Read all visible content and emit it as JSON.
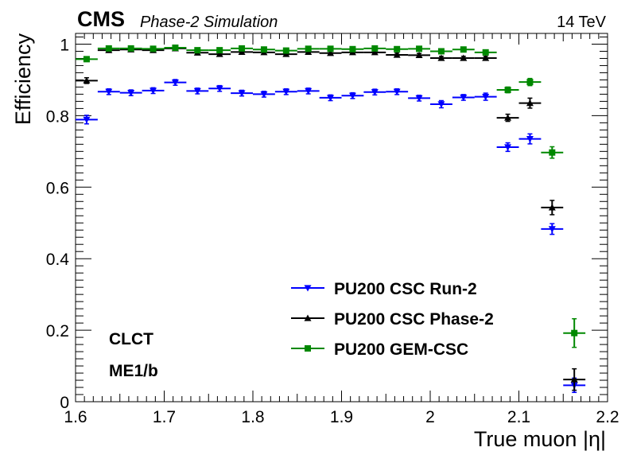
{
  "header": {
    "experiment": "CMS",
    "subtitle": "Phase-2 Simulation",
    "energy": "14 TeV"
  },
  "labels": {
    "region_line1": "CLCT",
    "region_line2": "ME1/b"
  },
  "chart_data": {
    "type": "scatter",
    "xlabel": "True muon |η|",
    "ylabel": "Efficiency",
    "xlim": [
      1.6,
      2.2
    ],
    "ylim": [
      0,
      1.03
    ],
    "x_ticks": [
      "1.6",
      "1.7",
      "1.8",
      "1.9",
      "2",
      "2.1",
      "2.2"
    ],
    "y_ticks": [
      "0",
      "0.2",
      "0.4",
      "0.6",
      "0.8",
      "1"
    ],
    "grid": false,
    "legend_position": "lower-center",
    "series": [
      {
        "name": "PU200 CSC Run-2",
        "color": "#0000ff",
        "marker": "triangle-down",
        "points": [
          {
            "x": 1.6125,
            "y": 0.789,
            "err": 0.012
          },
          {
            "x": 1.6375,
            "y": 0.867,
            "err": 0.008
          },
          {
            "x": 1.6625,
            "y": 0.864,
            "err": 0.008
          },
          {
            "x": 1.6875,
            "y": 0.87,
            "err": 0.008
          },
          {
            "x": 1.7125,
            "y": 0.893,
            "err": 0.008
          },
          {
            "x": 1.7375,
            "y": 0.869,
            "err": 0.008
          },
          {
            "x": 1.7625,
            "y": 0.876,
            "err": 0.008
          },
          {
            "x": 1.7875,
            "y": 0.863,
            "err": 0.008
          },
          {
            "x": 1.8125,
            "y": 0.86,
            "err": 0.008
          },
          {
            "x": 1.8375,
            "y": 0.867,
            "err": 0.008
          },
          {
            "x": 1.8625,
            "y": 0.869,
            "err": 0.008
          },
          {
            "x": 1.8875,
            "y": 0.85,
            "err": 0.008
          },
          {
            "x": 1.9125,
            "y": 0.856,
            "err": 0.008
          },
          {
            "x": 1.9375,
            "y": 0.866,
            "err": 0.008
          },
          {
            "x": 1.9625,
            "y": 0.867,
            "err": 0.008
          },
          {
            "x": 1.9875,
            "y": 0.849,
            "err": 0.008
          },
          {
            "x": 2.0125,
            "y": 0.832,
            "err": 0.01
          },
          {
            "x": 2.0375,
            "y": 0.851,
            "err": 0.008
          },
          {
            "x": 2.0625,
            "y": 0.853,
            "err": 0.01
          },
          {
            "x": 2.0875,
            "y": 0.712,
            "err": 0.012
          },
          {
            "x": 2.1125,
            "y": 0.735,
            "err": 0.014
          },
          {
            "x": 2.1375,
            "y": 0.483,
            "err": 0.015
          },
          {
            "x": 2.1625,
            "y": 0.046,
            "err": 0.02
          }
        ]
      },
      {
        "name": "PU200 CSC Phase-2",
        "color": "#000000",
        "marker": "triangle-up",
        "points": [
          {
            "x": 1.6125,
            "y": 0.898,
            "err": 0.008
          },
          {
            "x": 1.6375,
            "y": 0.983,
            "err": 0.004
          },
          {
            "x": 1.6625,
            "y": 0.985,
            "err": 0.004
          },
          {
            "x": 1.6875,
            "y": 0.983,
            "err": 0.004
          },
          {
            "x": 1.7125,
            "y": 0.988,
            "err": 0.004
          },
          {
            "x": 1.7375,
            "y": 0.976,
            "err": 0.005
          },
          {
            "x": 1.7625,
            "y": 0.972,
            "err": 0.005
          },
          {
            "x": 1.7875,
            "y": 0.978,
            "err": 0.005
          },
          {
            "x": 1.8125,
            "y": 0.977,
            "err": 0.005
          },
          {
            "x": 1.8375,
            "y": 0.972,
            "err": 0.005
          },
          {
            "x": 1.8625,
            "y": 0.978,
            "err": 0.005
          },
          {
            "x": 1.8875,
            "y": 0.975,
            "err": 0.005
          },
          {
            "x": 1.9125,
            "y": 0.977,
            "err": 0.005
          },
          {
            "x": 1.9375,
            "y": 0.977,
            "err": 0.005
          },
          {
            "x": 1.9625,
            "y": 0.97,
            "err": 0.005
          },
          {
            "x": 1.9875,
            "y": 0.969,
            "err": 0.005
          },
          {
            "x": 2.0125,
            "y": 0.961,
            "err": 0.005
          },
          {
            "x": 2.0375,
            "y": 0.961,
            "err": 0.005
          },
          {
            "x": 2.0625,
            "y": 0.961,
            "err": 0.005
          },
          {
            "x": 2.0875,
            "y": 0.794,
            "err": 0.01
          },
          {
            "x": 2.1125,
            "y": 0.835,
            "err": 0.014
          },
          {
            "x": 2.1375,
            "y": 0.543,
            "err": 0.02
          },
          {
            "x": 2.1625,
            "y": 0.062,
            "err": 0.03
          }
        ]
      },
      {
        "name": "PU200 GEM-CSC",
        "color": "#008800",
        "marker": "square",
        "points": [
          {
            "x": 1.6125,
            "y": 0.958,
            "err": 0.006
          },
          {
            "x": 1.6375,
            "y": 0.988,
            "err": 0.004
          },
          {
            "x": 1.6625,
            "y": 0.988,
            "err": 0.004
          },
          {
            "x": 1.6875,
            "y": 0.987,
            "err": 0.004
          },
          {
            "x": 1.7125,
            "y": 0.99,
            "err": 0.004
          },
          {
            "x": 1.7375,
            "y": 0.983,
            "err": 0.004
          },
          {
            "x": 1.7625,
            "y": 0.983,
            "err": 0.004
          },
          {
            "x": 1.7875,
            "y": 0.988,
            "err": 0.004
          },
          {
            "x": 1.8125,
            "y": 0.985,
            "err": 0.004
          },
          {
            "x": 1.8375,
            "y": 0.982,
            "err": 0.004
          },
          {
            "x": 1.8625,
            "y": 0.987,
            "err": 0.004
          },
          {
            "x": 1.8875,
            "y": 0.987,
            "err": 0.004
          },
          {
            "x": 1.9125,
            "y": 0.986,
            "err": 0.004
          },
          {
            "x": 1.9375,
            "y": 0.988,
            "err": 0.004
          },
          {
            "x": 1.9625,
            "y": 0.986,
            "err": 0.004
          },
          {
            "x": 1.9875,
            "y": 0.987,
            "err": 0.004
          },
          {
            "x": 2.0125,
            "y": 0.98,
            "err": 0.004
          },
          {
            "x": 2.0375,
            "y": 0.985,
            "err": 0.004
          },
          {
            "x": 2.0625,
            "y": 0.977,
            "err": 0.005
          },
          {
            "x": 2.0875,
            "y": 0.872,
            "err": 0.008
          },
          {
            "x": 2.1125,
            "y": 0.894,
            "err": 0.01
          },
          {
            "x": 2.1375,
            "y": 0.697,
            "err": 0.016
          },
          {
            "x": 2.1625,
            "y": 0.192,
            "err": 0.04
          }
        ]
      }
    ]
  }
}
